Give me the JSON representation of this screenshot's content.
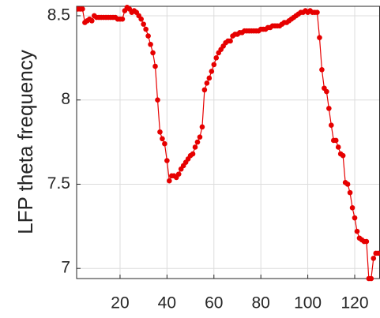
{
  "chart_data": {
    "type": "line",
    "y_label": "LFP theta frequency",
    "x": [
      2,
      3,
      4,
      5,
      6,
      7,
      8,
      9,
      10,
      11,
      12,
      13,
      14,
      15,
      16,
      17,
      18,
      19,
      20,
      21,
      22,
      23,
      24,
      25,
      26,
      27,
      28,
      29,
      30,
      31,
      32,
      33,
      34,
      35,
      36,
      37,
      38,
      39,
      40,
      41,
      42,
      43,
      44,
      45,
      46,
      47,
      48,
      49,
      50,
      51,
      52,
      53,
      54,
      55,
      56,
      57,
      58,
      59,
      60,
      61,
      62,
      63,
      64,
      65,
      66,
      67,
      68,
      69,
      70,
      71,
      72,
      73,
      74,
      75,
      76,
      77,
      78,
      79,
      80,
      81,
      82,
      83,
      84,
      85,
      86,
      87,
      88,
      89,
      90,
      91,
      92,
      93,
      94,
      95,
      96,
      97,
      98,
      99,
      100,
      101,
      102,
      103,
      104,
      105,
      106,
      107,
      108,
      109,
      110,
      111,
      112,
      113,
      114,
      115,
      116,
      117,
      118,
      119,
      120,
      121,
      122,
      123,
      124,
      125,
      126,
      127,
      128,
      129,
      130
    ],
    "series": [
      {
        "color": "#e60000",
        "values": [
          8.54,
          8.54,
          8.54,
          8.46,
          8.47,
          8.48,
          8.47,
          8.5,
          8.49,
          8.49,
          8.49,
          8.49,
          8.49,
          8.49,
          8.49,
          8.49,
          8.49,
          8.48,
          8.48,
          8.48,
          8.53,
          8.55,
          8.54,
          8.52,
          8.53,
          8.52,
          8.5,
          8.48,
          8.45,
          8.42,
          8.38,
          8.33,
          8.28,
          8.2,
          8.0,
          7.81,
          7.77,
          7.74,
          7.64,
          7.52,
          7.55,
          7.55,
          7.54,
          7.56,
          7.59,
          7.61,
          7.63,
          7.65,
          7.67,
          7.68,
          7.72,
          7.75,
          7.78,
          7.84,
          8.06,
          8.1,
          8.13,
          8.17,
          8.21,
          8.25,
          8.28,
          8.3,
          8.32,
          8.34,
          8.35,
          8.35,
          8.38,
          8.39,
          8.39,
          8.4,
          8.4,
          8.41,
          8.41,
          8.41,
          8.41,
          8.41,
          8.41,
          8.41,
          8.42,
          8.42,
          8.42,
          8.43,
          8.43,
          8.44,
          8.44,
          8.44,
          8.44,
          8.45,
          8.46,
          8.46,
          8.47,
          8.48,
          8.49,
          8.5,
          8.51,
          8.52,
          8.52,
          8.53,
          8.52,
          8.53,
          8.52,
          8.52,
          8.52,
          8.37,
          8.18,
          8.07,
          8.05,
          7.95,
          7.85,
          7.76,
          7.76,
          7.72,
          7.68,
          7.67,
          7.51,
          7.5,
          7.45,
          7.36,
          7.3,
          7.22,
          7.18,
          7.17,
          7.16,
          7.16,
          6.94,
          6.94,
          7.06,
          7.09,
          7.09
        ]
      }
    ],
    "xlim": [
      1.5,
      130.6
    ],
    "xticks": [
      20,
      40,
      60,
      80,
      100,
      120
    ],
    "ylim": [
      6.94,
      8.556
    ],
    "yticks": [
      7,
      7.5,
      8,
      8.5
    ],
    "grid": true
  }
}
